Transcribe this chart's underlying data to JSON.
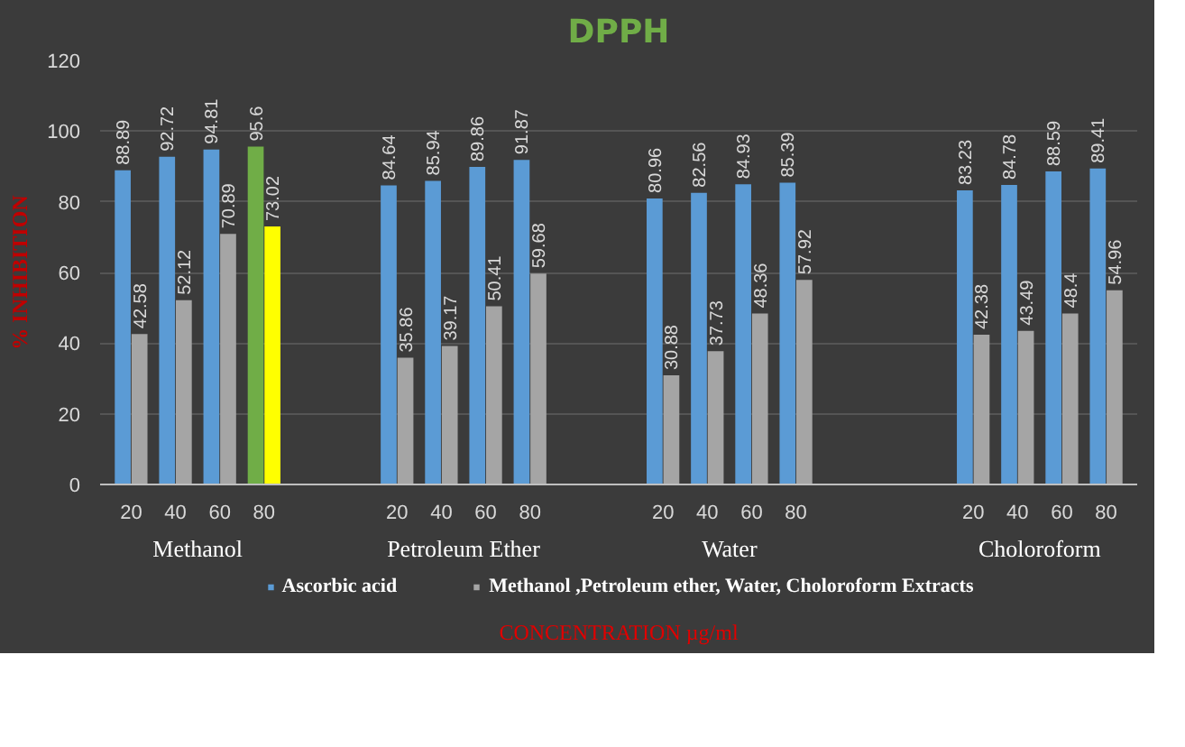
{
  "chart_data": {
    "type": "bar",
    "title": "DPPH",
    "ylabel": "% INHIBITION",
    "xlabel": "CONCENTRATION µg/ml",
    "categories": [
      "20",
      "40",
      "60",
      "80",
      null,
      null,
      "20",
      "40",
      "60",
      "80",
      null,
      null,
      "20",
      "40",
      "60",
      "80",
      null,
      null,
      null,
      "20",
      "40",
      "60",
      "80"
    ],
    "series": [
      {
        "name": "Ascorbic acid",
        "color": "#5b9bd5",
        "colors": [
          null,
          null,
          null,
          "#70ad47",
          null,
          null,
          null,
          null,
          null,
          null,
          null,
          null,
          null,
          null,
          null,
          null,
          null,
          null,
          null,
          null,
          null,
          null,
          null
        ],
        "values": [
          88.89,
          92.72,
          94.81,
          95.6,
          null,
          null,
          84.64,
          85.94,
          89.86,
          91.87,
          null,
          null,
          80.96,
          82.56,
          84.93,
          85.39,
          null,
          null,
          null,
          83.23,
          84.78,
          88.59,
          89.41
        ]
      },
      {
        "name": "Methanol ,Petroleum ether, Water, Choloroform Extracts",
        "color": "#a5a5a5",
        "colors": [
          null,
          null,
          null,
          "#ffff00",
          null,
          null,
          null,
          null,
          null,
          null,
          null,
          null,
          null,
          null,
          null,
          null,
          null,
          null,
          null,
          null,
          null,
          null,
          null
        ],
        "values": [
          42.58,
          52.12,
          70.89,
          73.02,
          null,
          null,
          35.86,
          39.17,
          50.41,
          59.68,
          null,
          null,
          30.88,
          37.73,
          48.36,
          57.92,
          null,
          null,
          null,
          42.38,
          43.49,
          48.4,
          54.96
        ]
      }
    ],
    "annotations": [
      "Methanol",
      "Petroleum Ether",
      "Water",
      "Choloroform"
    ],
    "ylim": [
      0,
      120
    ],
    "yticks": [
      0,
      20,
      40,
      60,
      80,
      100,
      120
    ],
    "grid": "y",
    "legend": "bottom",
    "data_labels": true
  }
}
